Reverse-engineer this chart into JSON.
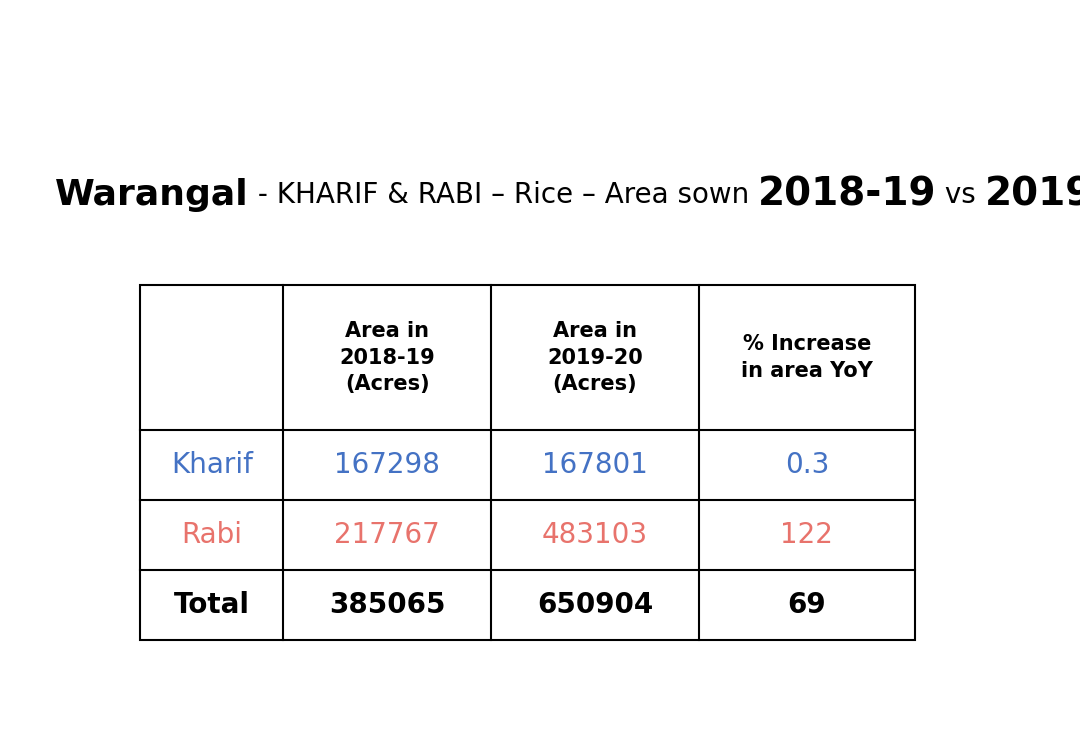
{
  "col_headers": [
    "",
    "Area in\n2018-19\n(Acres)",
    "Area in\n2019-20\n(Acres)",
    "% Increase\nin area YoY"
  ],
  "rows": [
    {
      "label": "Kharif",
      "values": [
        "167298",
        "167801",
        "0.3"
      ],
      "color": "#4472C4",
      "bold": false
    },
    {
      "label": "Rabi",
      "values": [
        "217767",
        "483103",
        "122"
      ],
      "color": "#E8736C",
      "bold": false
    },
    {
      "label": "Total",
      "values": [
        "385065",
        "650904",
        "69"
      ],
      "color": "#000000",
      "bold": true
    }
  ],
  "background_color": "#ffffff",
  "table_border_color": "#000000",
  "kharif_color": "#4472C4",
  "rabi_color": "#E8736C",
  "total_color": "#000000"
}
